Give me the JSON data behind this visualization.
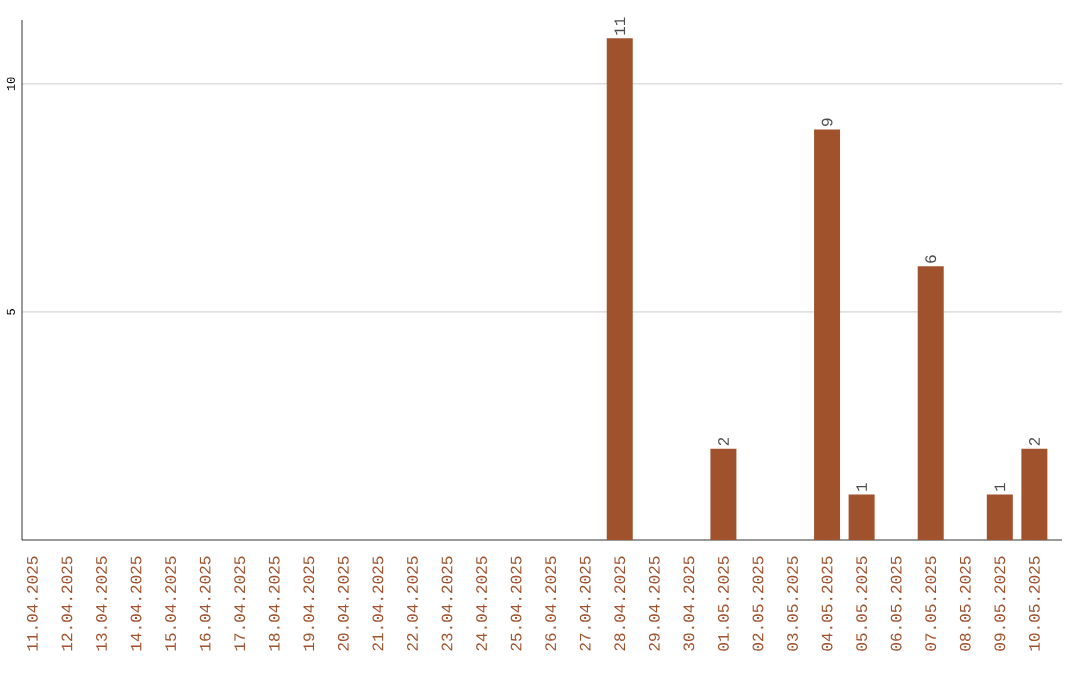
{
  "chart_data": {
    "type": "bar",
    "categories": [
      "11.04.2025",
      "12.04.2025",
      "13.04.2025",
      "14.04.2025",
      "15.04.2025",
      "16.04.2025",
      "17.04.2025",
      "18.04.2025",
      "19.04.2025",
      "20.04.2025",
      "21.04.2025",
      "22.04.2025",
      "23.04.2025",
      "24.04.2025",
      "25.04.2025",
      "26.04.2025",
      "27.04.2025",
      "28.04.2025",
      "29.04.2025",
      "30.04.2025",
      "01.05.2025",
      "02.05.2025",
      "03.05.2025",
      "04.05.2025",
      "05.05.2025",
      "06.05.2025",
      "07.05.2025",
      "08.05.2025",
      "09.05.2025",
      "10.05.2025"
    ],
    "values": [
      0,
      0,
      0,
      0,
      0,
      0,
      0,
      0,
      0,
      0,
      0,
      0,
      0,
      0,
      0,
      0,
      0,
      11,
      0,
      0,
      2,
      0,
      0,
      9,
      1,
      0,
      6,
      0,
      1,
      2
    ],
    "value_labels": [
      null,
      null,
      null,
      null,
      null,
      null,
      null,
      null,
      null,
      null,
      null,
      null,
      null,
      null,
      null,
      null,
      null,
      "11",
      null,
      null,
      "2",
      null,
      null,
      "9",
      "1",
      null,
      "6",
      null,
      "1",
      "2"
    ],
    "color": "#a0522d",
    "ylim": [
      0,
      11.4
    ],
    "yticks": [
      5,
      10
    ],
    "grid": "y"
  }
}
